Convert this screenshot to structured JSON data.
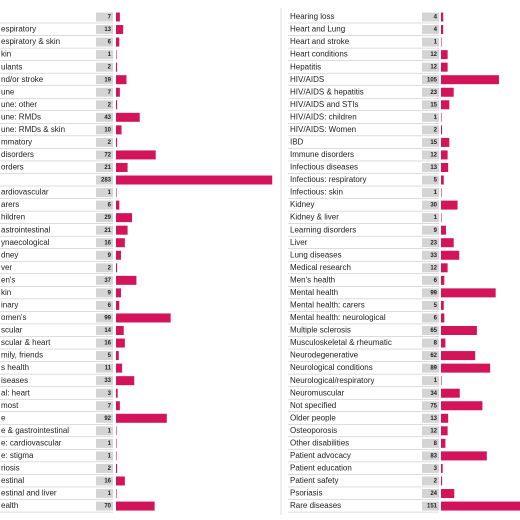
{
  "chart_data": [
    {
      "type": "bar",
      "orientation": "horizontal",
      "color": "#d3145a",
      "categories": [
        null,
        "espiratory",
        "espiratory & skin",
        "kin",
        "ulants",
        "nd/or stroke",
        "une",
        "une: other",
        "une: RMDs",
        "une: RMDs & skin",
        "mmatory",
        "disorders",
        "orders",
        null,
        "ardiovascular",
        "arers",
        "hildren",
        "astrointestinal",
        "ynaecological",
        "dney",
        "ver",
        "en's",
        "kin",
        "inary",
        "omen's",
        "scular",
        "scular & heart",
        "mily, friends",
        "s health",
        "iseases",
        "al: heart",
        "most",
        "e",
        "e & gastrointestinal",
        "e: cardiovascular",
        "e: stigma",
        "riosis",
        "estinal",
        "estinal and liver",
        "ealth"
      ],
      "values": [
        7,
        13,
        6,
        1,
        2,
        19,
        7,
        2,
        43,
        10,
        2,
        72,
        21,
        283,
        1,
        6,
        29,
        21,
        16,
        9,
        2,
        37,
        9,
        6,
        99,
        14,
        16,
        5,
        11,
        33,
        3,
        7,
        92,
        1,
        1,
        1,
        2,
        16,
        1,
        70
      ]
    },
    {
      "type": "bar",
      "orientation": "horizontal",
      "color": "#d3145a",
      "categories": [
        "Hearing loss",
        "Heart and Lung",
        "Heart and stroke",
        "Heart conditions",
        "Hepatitis",
        "HIV/AIDS",
        "HIV/AIDS & hepatitis",
        "HIV/AIDS and STIs",
        "HIV/AIDS: children",
        "HIV/AIDS: Women",
        "IBD",
        "Immune disorders",
        "Infectious diseases",
        "Infectious: respiratory",
        "Infectious: skin",
        "Kidney",
        "Kidney & liver",
        "Learning disorders",
        "Liver",
        "Lung diseases",
        "Medical research",
        "Men's health",
        "Mental health",
        "Mental health: carers",
        "Mental health: neurological",
        "Multiple sclerosis",
        "Musculoskeletal & rheumatic",
        "Neurodegenerative",
        "Neurological conditions",
        "Neurological/respiratory",
        "Neuromuscular",
        "Not specified",
        "Older people",
        "Osteoporosis",
        "Other disabilities",
        "Patient advocacy",
        "Patient education",
        "Patient safety",
        "Psoriasis",
        "Rare diseases"
      ],
      "values": [
        4,
        4,
        1,
        12,
        12,
        105,
        23,
        15,
        1,
        2,
        15,
        12,
        13,
        5,
        1,
        30,
        1,
        9,
        23,
        33,
        12,
        6,
        99,
        5,
        6,
        65,
        8,
        62,
        89,
        1,
        34,
        75,
        13,
        12,
        8,
        83,
        3,
        2,
        24,
        151
      ]
    }
  ]
}
